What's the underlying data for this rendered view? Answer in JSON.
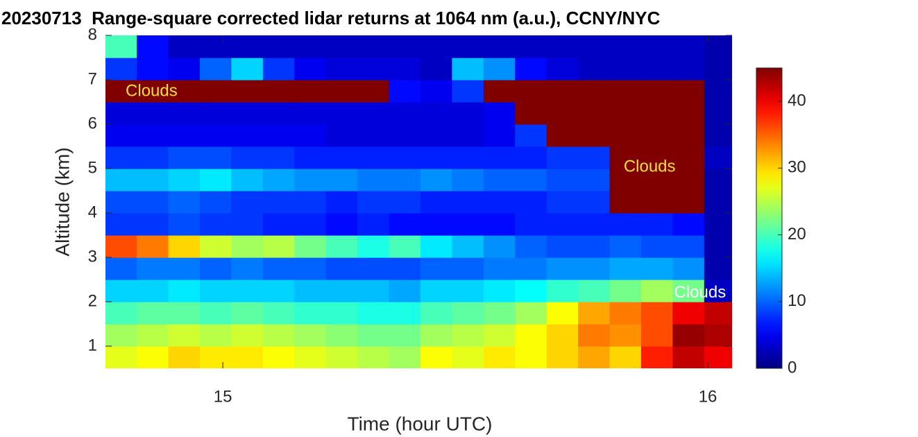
{
  "chart_data": {
    "type": "heatmap",
    "title": "20230713  Range-square corrected lidar returns at 1064 nm (a.u.), CCNY/NYC",
    "xlabel": "Time (hour UTC)",
    "ylabel": "Altitude (km)",
    "colormap": "jet",
    "x": [
      14.79,
      14.855,
      14.92,
      14.985,
      15.05,
      15.115,
      15.18,
      15.245,
      15.31,
      15.375,
      15.44,
      15.505,
      15.57,
      15.635,
      15.7,
      15.765,
      15.83,
      15.895,
      15.96,
      16.025
    ],
    "y": [
      0.75,
      1.25,
      1.75,
      2.25,
      2.75,
      3.25,
      3.75,
      4.25,
      4.75,
      5.25,
      5.75,
      6.25,
      6.75,
      7.25,
      7.75
    ],
    "z": [
      [
        27,
        28,
        30,
        29,
        29,
        28,
        27,
        26,
        25,
        24,
        28,
        27,
        29,
        28,
        30,
        32,
        30,
        38,
        42,
        40
      ],
      [
        24,
        25,
        26,
        25,
        26,
        25,
        24,
        23,
        22,
        22,
        24,
        25,
        26,
        28,
        30,
        34,
        33,
        36,
        44,
        43
      ],
      [
        20,
        21,
        21,
        20,
        21,
        20,
        19,
        19,
        18,
        18,
        20,
        21,
        22,
        24,
        28,
        32,
        34,
        36,
        40,
        42
      ],
      [
        15,
        15,
        16,
        15,
        15,
        15,
        14,
        14,
        14,
        13,
        15,
        15,
        16,
        17,
        19,
        20,
        22,
        24,
        22,
        3
      ],
      [
        10,
        11,
        11,
        10,
        11,
        10,
        10,
        9,
        9,
        9,
        10,
        10,
        11,
        11,
        12,
        12,
        13,
        13,
        12,
        2
      ],
      [
        36,
        34,
        30,
        26,
        24,
        25,
        22,
        20,
        18,
        20,
        16,
        14,
        12,
        10,
        9,
        9,
        10,
        9,
        9,
        2
      ],
      [
        8,
        8,
        9,
        8,
        8,
        7,
        7,
        6,
        7,
        6,
        6,
        6,
        6,
        7,
        7,
        7,
        7,
        7,
        6,
        2
      ],
      [
        9,
        9,
        10,
        9,
        8,
        8,
        8,
        7,
        8,
        8,
        7,
        7,
        7,
        7,
        8,
        8,
        45,
        45,
        45,
        2
      ],
      [
        14,
        14,
        15,
        16,
        14,
        13,
        12,
        12,
        11,
        11,
        12,
        11,
        10,
        10,
        9,
        9,
        45,
        45,
        45,
        2
      ],
      [
        8,
        8,
        9,
        9,
        8,
        8,
        7,
        7,
        7,
        7,
        7,
        7,
        7,
        7,
        8,
        8,
        45,
        45,
        45,
        3
      ],
      [
        5,
        5,
        5,
        5,
        5,
        5,
        5,
        4,
        4,
        4,
        4,
        4,
        5,
        8,
        45,
        45,
        45,
        45,
        45,
        2
      ],
      [
        4,
        4,
        4,
        4,
        4,
        4,
        4,
        4,
        4,
        4,
        4,
        4,
        5,
        45,
        45,
        45,
        45,
        45,
        45,
        2
      ],
      [
        45,
        45,
        45,
        45,
        45,
        45,
        45,
        45,
        45,
        6,
        5,
        8,
        45,
        45,
        45,
        45,
        45,
        45,
        45,
        2
      ],
      [
        8,
        6,
        5,
        10,
        15,
        8,
        5,
        4,
        4,
        4,
        3,
        14,
        12,
        6,
        4,
        3,
        3,
        3,
        3,
        2
      ],
      [
        20,
        6,
        3,
        3,
        3,
        3,
        3,
        3,
        3,
        3,
        3,
        3,
        3,
        3,
        3,
        3,
        3,
        3,
        3,
        2
      ]
    ],
    "xlim": [
      14.758,
      16.05
    ],
    "xticks": [
      15,
      16
    ],
    "ylim": [
      0.5,
      8
    ],
    "yticks": [
      1,
      2,
      3,
      4,
      5,
      6,
      7,
      8
    ],
    "clim": [
      0,
      45
    ],
    "cticks": [
      0,
      10,
      20,
      30,
      40
    ],
    "annotations": [
      {
        "text": "Clouds",
        "x": 14.853,
        "y": 6.73,
        "color": "#f5e132"
      },
      {
        "text": "Clouds",
        "x": 15.88,
        "y": 5.03,
        "color": "#f5e132"
      },
      {
        "text": "Clouds",
        "x": 15.984,
        "y": 2.19,
        "color": "#ffffff"
      }
    ]
  }
}
